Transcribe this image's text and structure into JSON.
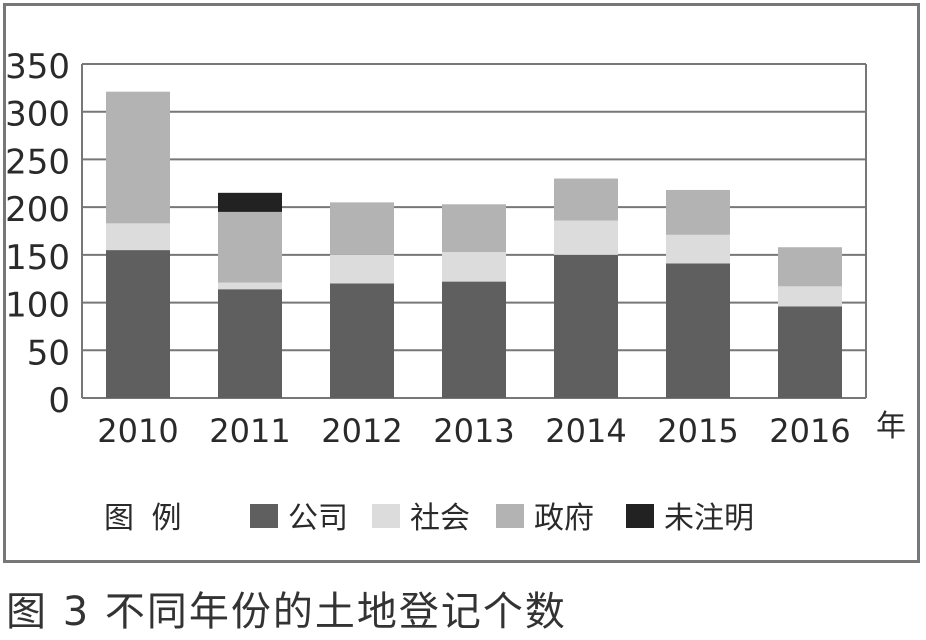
{
  "caption": "图 3 不同年份的土地登记个数",
  "chart_data": {
    "type": "bar",
    "stacked": true,
    "categories": [
      "2010",
      "2011",
      "2012",
      "2013",
      "2014",
      "2015",
      "2016"
    ],
    "x_unit_label": "年",
    "ylim": [
      0,
      350
    ],
    "yticks": [
      "0",
      "50",
      "100",
      "150",
      "200",
      "250",
      "300",
      "350"
    ],
    "grid": true,
    "legend_title": "图 例",
    "legend_position": "bottom",
    "series": [
      {
        "name": "公司",
        "color": "#5f5f5f",
        "values": [
          155,
          114,
          120,
          122,
          150,
          141,
          96
        ]
      },
      {
        "name": "社会",
        "color": "#dcdcdc",
        "values": [
          28,
          7,
          30,
          31,
          36,
          30,
          21
        ]
      },
      {
        "name": "政府",
        "color": "#b3b3b3",
        "values": [
          138,
          74,
          55,
          50,
          44,
          47,
          41
        ]
      },
      {
        "name": "未注明",
        "color": "#222222",
        "values": [
          0,
          20,
          0,
          0,
          0,
          0,
          0
        ]
      }
    ]
  }
}
